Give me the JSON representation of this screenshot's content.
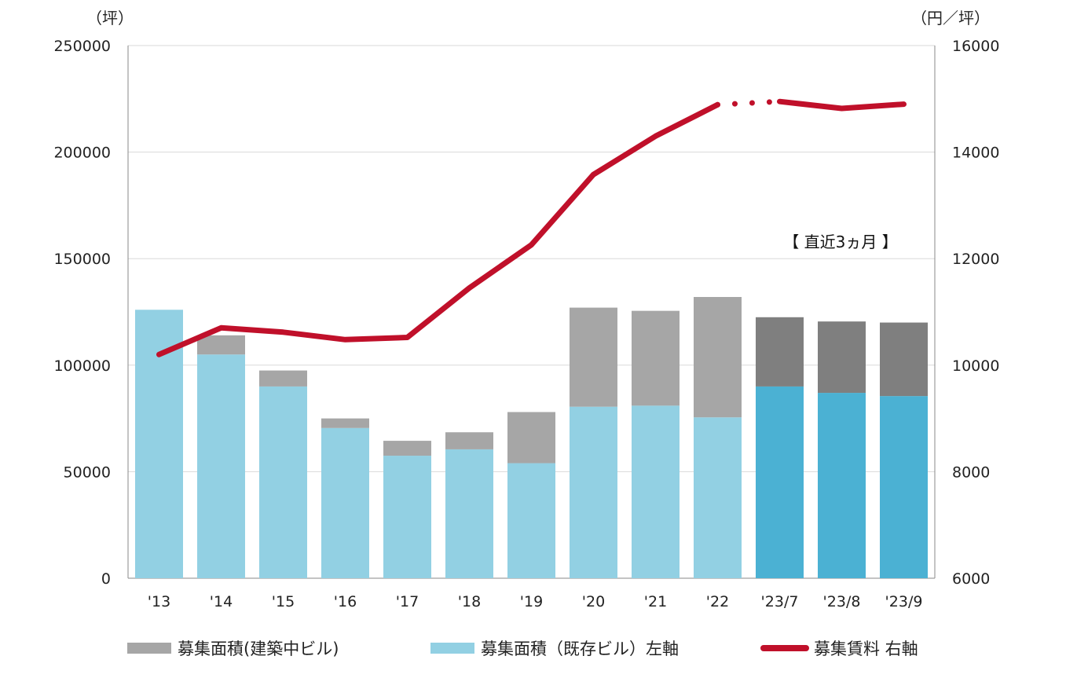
{
  "chart_data": {
    "type": "bar",
    "categories": [
      "'13",
      "'14",
      "'15",
      "'16",
      "'17",
      "'18",
      "'19",
      "'20",
      "'21",
      "'22",
      "'23/7",
      "'23/8",
      "'23/9"
    ],
    "series": [
      {
        "name": "募集面積（既存ビル）左軸",
        "axis": "left",
        "values": [
          126000,
          105000,
          90000,
          70500,
          57500,
          60500,
          54000,
          80500,
          81000,
          75500,
          90000,
          87000,
          85500
        ],
        "color": "#92d0e3",
        "recent_color": "#4bb1d3"
      },
      {
        "name": "募集面積(建築中ビル)",
        "axis": "left",
        "values": [
          0,
          9000,
          7500,
          4500,
          7000,
          8000,
          24000,
          46500,
          44500,
          56500,
          32500,
          33500,
          34500
        ],
        "color": "#a6a6a6",
        "recent_color": "#7f7f7f"
      },
      {
        "name": "募集賃料 右軸",
        "type": "line",
        "axis": "right",
        "values": [
          10200,
          10700,
          10620,
          10480,
          10520,
          11450,
          12260,
          13580,
          14300,
          14890,
          14950,
          14820,
          14900
        ],
        "color": "#c0102a"
      }
    ],
    "recent_start_index": 10,
    "dotted_segment": [
      9,
      10
    ],
    "y_left": {
      "min": 0,
      "max": 250000,
      "ticks": [
        "0",
        "50000",
        "100000",
        "150000",
        "200000",
        "250000"
      ],
      "unit": "（坪）"
    },
    "y_right": {
      "min": 6000,
      "max": 16000,
      "ticks": [
        "6000",
        "8000",
        "10000",
        "12000",
        "14000",
        "16000"
      ],
      "unit": "（円／坪）"
    },
    "annotation": "【 直近3ヵ月 】",
    "grid": true,
    "legend_position": "bottom"
  },
  "legend": {
    "construction": "募集面積(建築中ビル)",
    "existing": "募集面積（既存ビル）左軸",
    "rent": "募集賃料 右軸"
  }
}
